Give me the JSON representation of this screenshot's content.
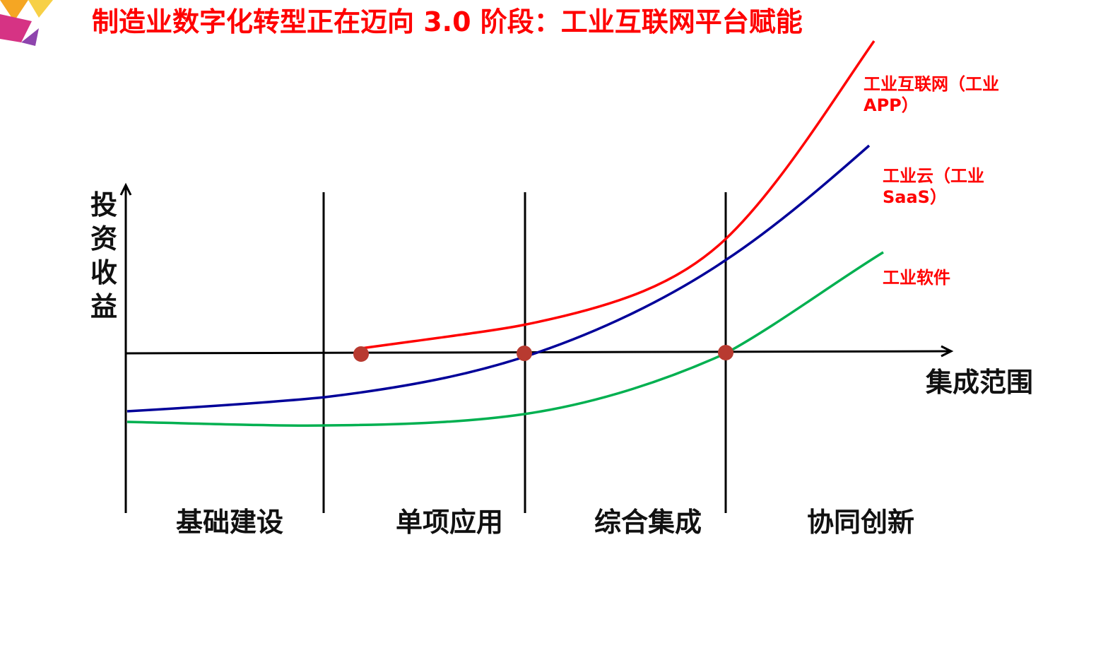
{
  "title": "制造业数字化转型正在迈向 3.0 阶段：工业互联网平台赋能",
  "axes": {
    "y_label": "投资收益",
    "x_label": "集成范围"
  },
  "stages": [
    "基础建设",
    "单项应用",
    "综合集成",
    "协同创新"
  ],
  "curves": [
    {
      "label": "工业互联网（工业APP）"
    },
    {
      "label": "工业云（工业SaaS）"
    },
    {
      "label": "工业软件"
    }
  ]
}
